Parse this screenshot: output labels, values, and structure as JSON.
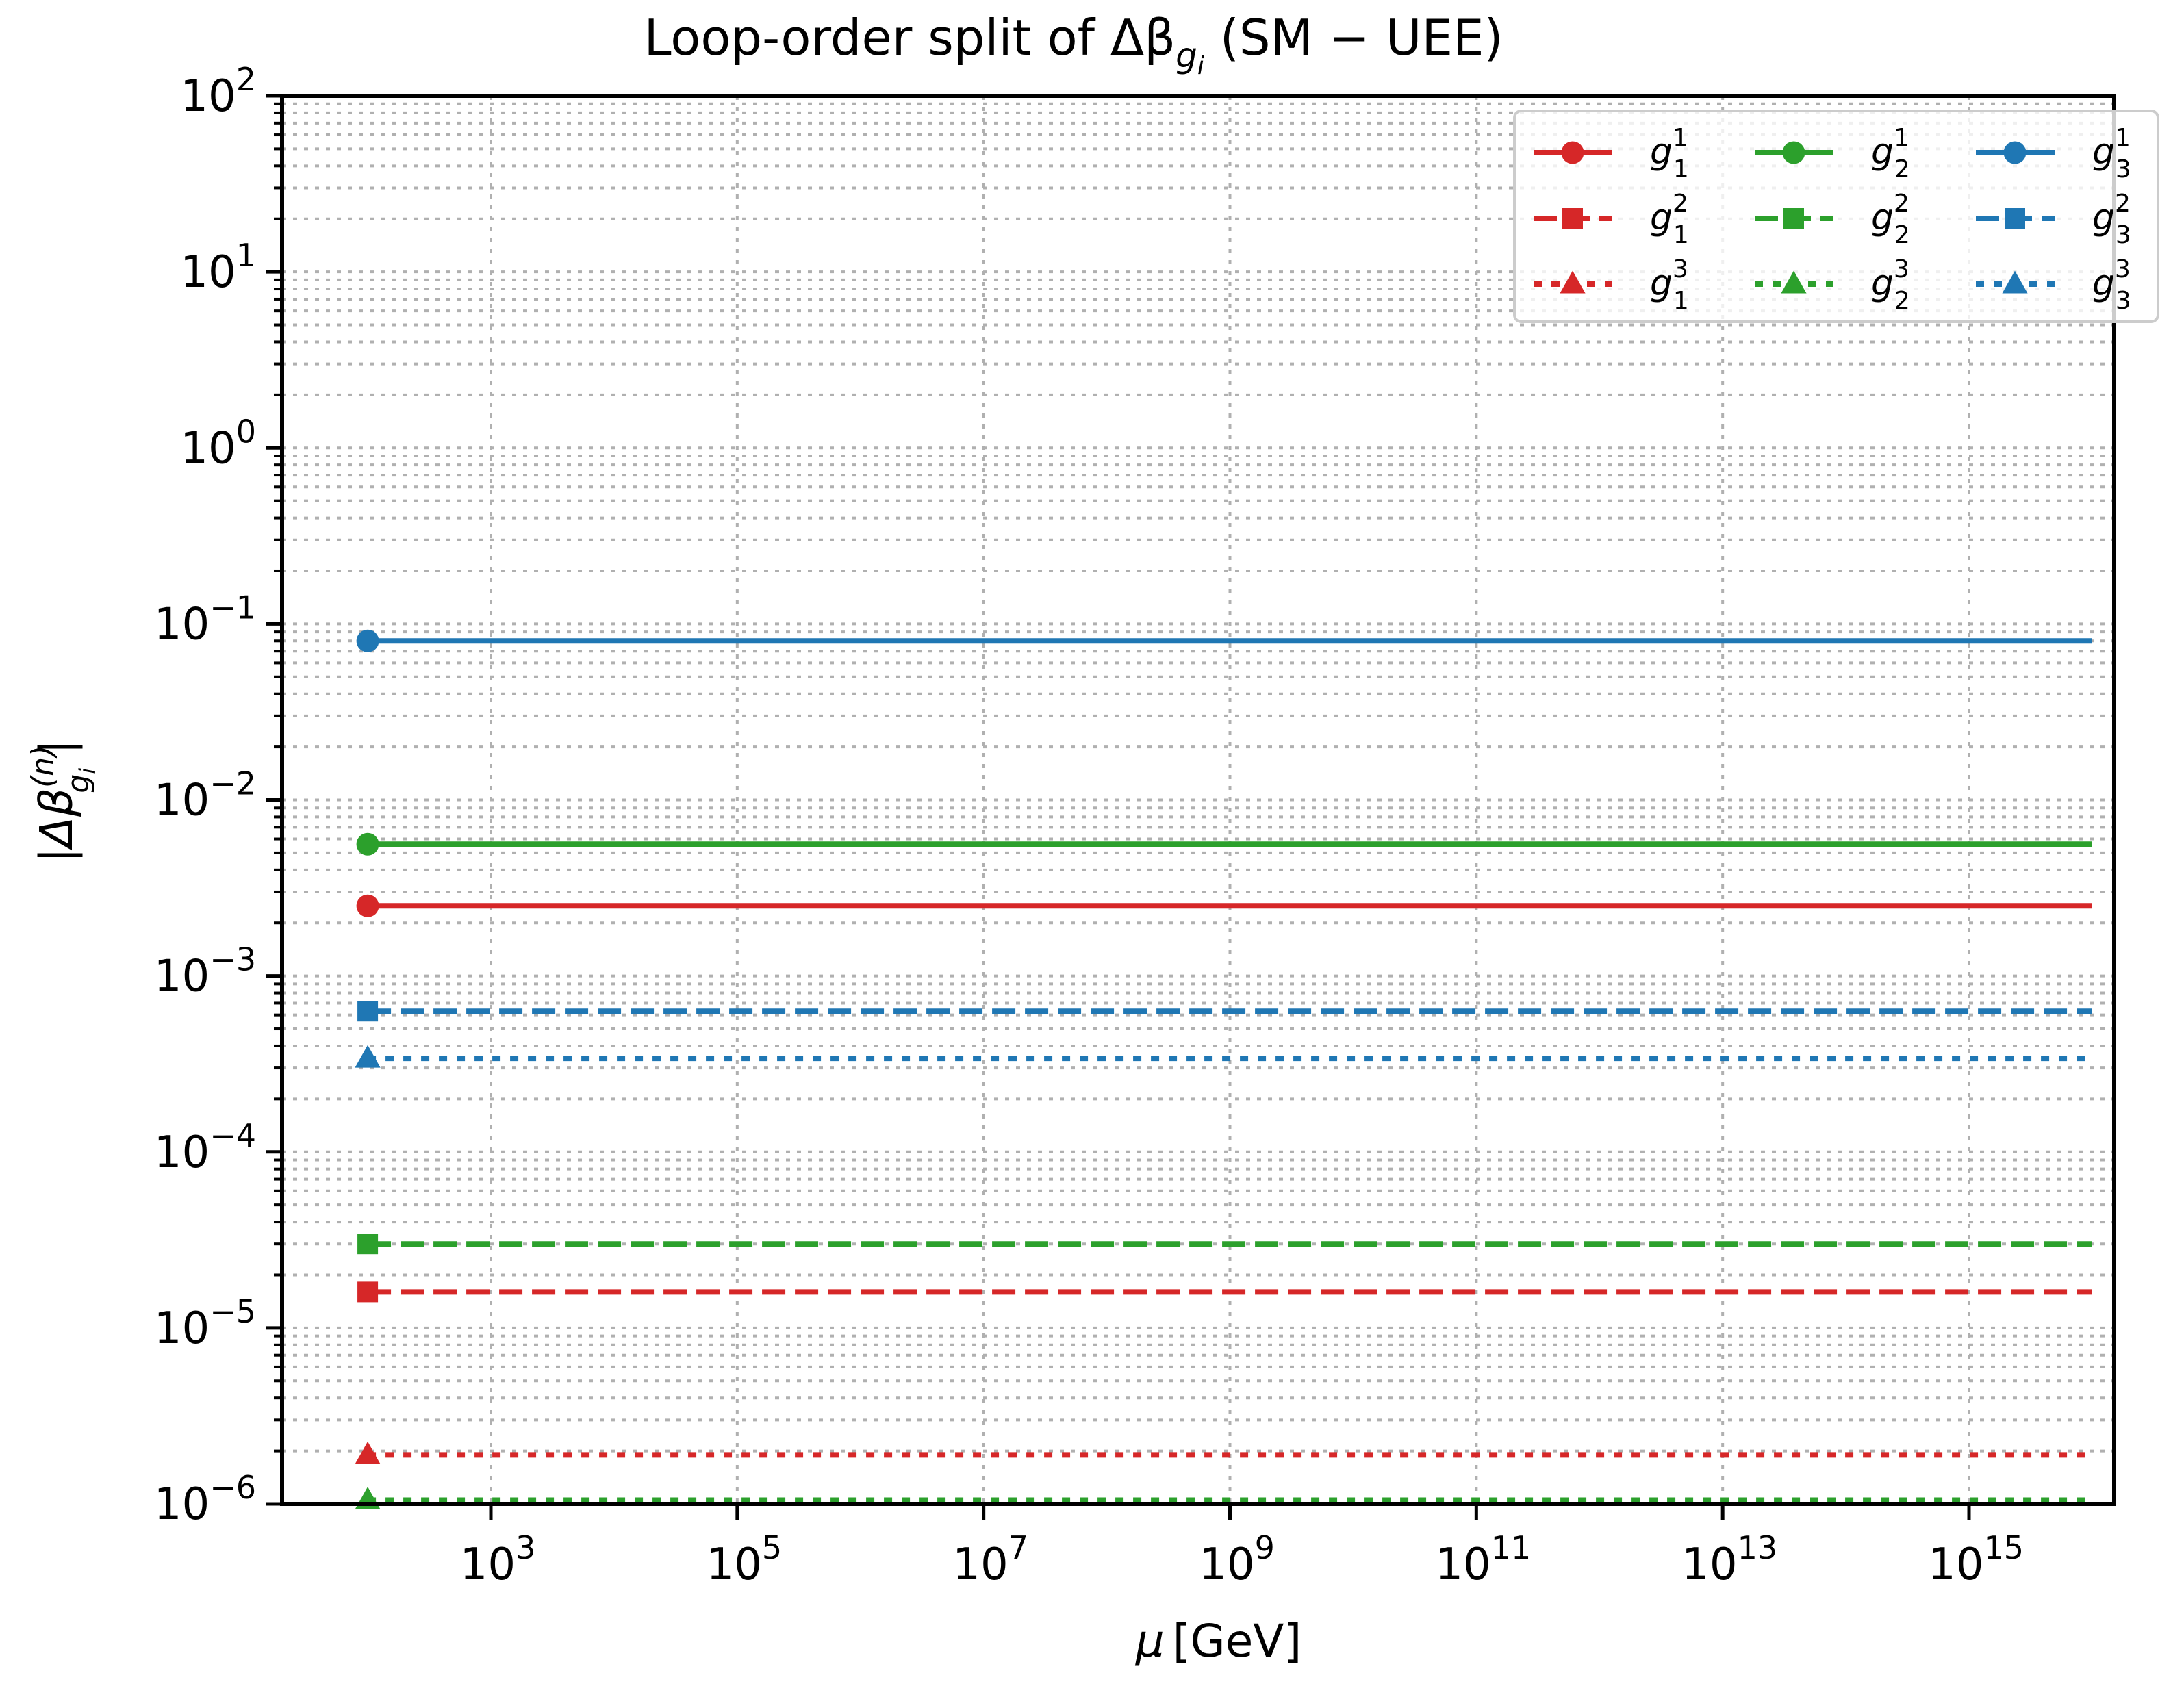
{
  "chart_data": {
    "type": "line",
    "title": "Loop-order split of Δβ_{g_i}  (SM − UEE)",
    "title_parts": {
      "prefix": "Loop-order split of Δβ",
      "sub": "g",
      "subsub": "i",
      "suffix": "  (SM − UEE)"
    },
    "xlabel": "μ [GeV]",
    "xlabel_parts": {
      "mu": "μ",
      "unit": "[GeV]"
    },
    "ylabel": "|Δβ_{g_i}^{(n)}|",
    "ylabel_parts": {
      "bar": "|",
      "delta_beta": "Δβ",
      "sup": "(n)",
      "sub": "g",
      "subsub": "i"
    },
    "xscale": "log",
    "yscale": "log",
    "xlim": [
      20,
      1.5e+16
    ],
    "ylim": [
      1e-06,
      100
    ],
    "x_ticks": [
      {
        "base": "10",
        "exp": "3",
        "value": 1000.0
      },
      {
        "base": "10",
        "exp": "5",
        "value": 100000.0
      },
      {
        "base": "10",
        "exp": "7",
        "value": 10000000.0
      },
      {
        "base": "10",
        "exp": "9",
        "value": 1000000000.0
      },
      {
        "base": "10",
        "exp": "11",
        "value": 100000000000.0
      },
      {
        "base": "10",
        "exp": "13",
        "value": 10000000000000.0
      },
      {
        "base": "10",
        "exp": "15",
        "value": 1000000000000000.0
      }
    ],
    "y_ticks": [
      {
        "base": "10",
        "exp": "2",
        "value": 100
      },
      {
        "base": "10",
        "exp": "1",
        "value": 10
      },
      {
        "base": "10",
        "exp": "0",
        "value": 1
      },
      {
        "base": "10",
        "exp": "−1",
        "value": 0.1
      },
      {
        "base": "10",
        "exp": "−2",
        "value": 0.01
      },
      {
        "base": "10",
        "exp": "−3",
        "value": 0.001
      },
      {
        "base": "10",
        "exp": "−4",
        "value": 0.0001
      },
      {
        "base": "10",
        "exp": "−5",
        "value": 1e-05
      },
      {
        "base": "10",
        "exp": "−6",
        "value": 1e-06
      }
    ],
    "grid": {
      "major": true,
      "minor_y": true,
      "style": "dotted",
      "color": "#b0b0b0"
    },
    "legend": {
      "position": "upper right",
      "ncol": 3
    },
    "x": [
      100,
      1e+16
    ],
    "series": [
      {
        "name": "g_1^1",
        "label_g": "g",
        "label_sub": "1",
        "label_sup": "1",
        "color": "#d62728",
        "linestyle": "solid",
        "marker": "circle",
        "values": [
          0.0025,
          0.0025
        ]
      },
      {
        "name": "g_1^2",
        "label_g": "g",
        "label_sub": "1",
        "label_sup": "2",
        "color": "#d62728",
        "linestyle": "dashed",
        "marker": "square",
        "values": [
          1.6e-05,
          1.6e-05
        ]
      },
      {
        "name": "g_1^3",
        "label_g": "g",
        "label_sub": "1",
        "label_sup": "3",
        "color": "#d62728",
        "linestyle": "dotted",
        "marker": "triangle",
        "values": [
          1.9e-06,
          1.9e-06
        ]
      },
      {
        "name": "g_2^1",
        "label_g": "g",
        "label_sub": "2",
        "label_sup": "1",
        "color": "#2ca02c",
        "linestyle": "solid",
        "marker": "circle",
        "values": [
          0.0056,
          0.0056
        ]
      },
      {
        "name": "g_2^2",
        "label_g": "g",
        "label_sub": "2",
        "label_sup": "2",
        "color": "#2ca02c",
        "linestyle": "dashed",
        "marker": "square",
        "values": [
          3e-05,
          3e-05
        ]
      },
      {
        "name": "g_2^3",
        "label_g": "g",
        "label_sub": "2",
        "label_sup": "3",
        "color": "#2ca02c",
        "linestyle": "dotted",
        "marker": "triangle",
        "values": [
          1.05e-06,
          1.05e-06
        ]
      },
      {
        "name": "g_3^1",
        "label_g": "g",
        "label_sub": "3",
        "label_sup": "1",
        "color": "#1f77b4",
        "linestyle": "solid",
        "marker": "circle",
        "values": [
          0.08,
          0.08
        ]
      },
      {
        "name": "g_3^2",
        "label_g": "g",
        "label_sub": "3",
        "label_sup": "2",
        "color": "#1f77b4",
        "linestyle": "dashed",
        "marker": "square",
        "values": [
          0.00063,
          0.00063
        ]
      },
      {
        "name": "g_3^3",
        "label_g": "g",
        "label_sub": "3",
        "label_sup": "3",
        "color": "#1f77b4",
        "linestyle": "dotted",
        "marker": "triangle",
        "values": [
          0.00034,
          0.00034
        ]
      }
    ]
  }
}
